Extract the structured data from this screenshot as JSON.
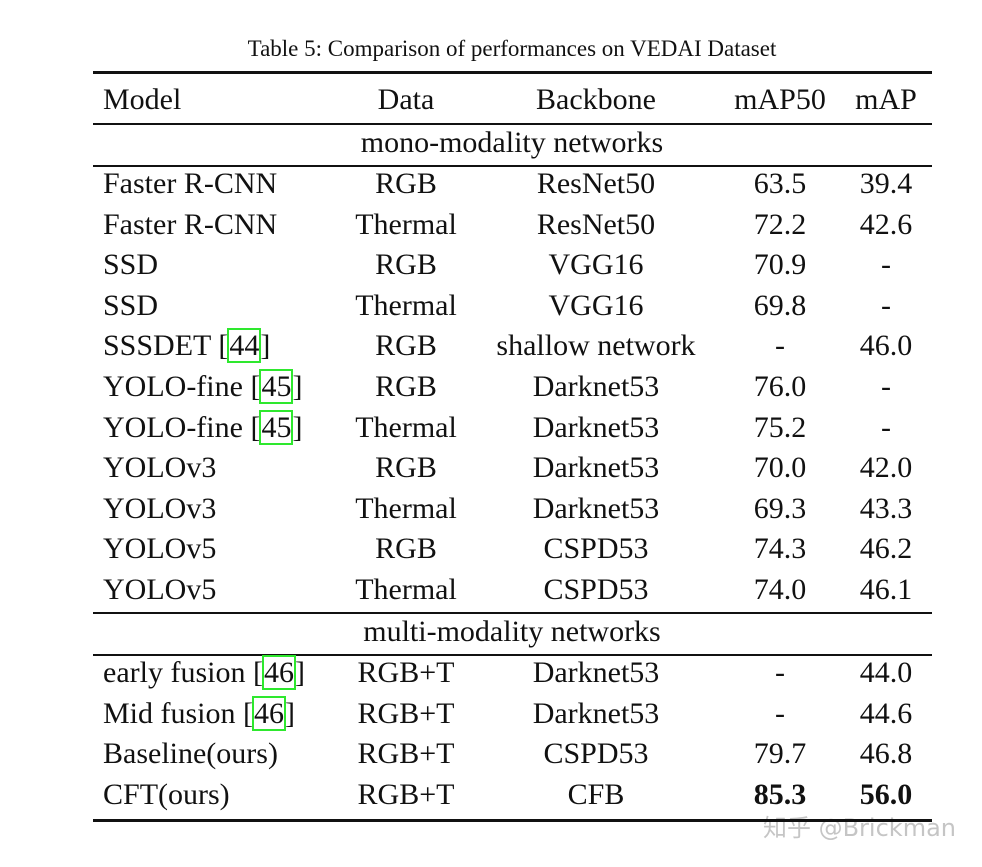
{
  "caption": "Table 5: Comparison of performances on VEDAI Dataset",
  "table": {
    "header": [
      "Model",
      "Data",
      "Backbone",
      "mAP50",
      "mAP"
    ],
    "sections": [
      {
        "title": "mono-modality networks",
        "rows": [
          [
            "Faster R-CNN",
            "RGB",
            "ResNet50",
            "63.5",
            "39.4"
          ],
          [
            "Faster R-CNN",
            "Thermal",
            "ResNet50",
            "72.2",
            "42.6"
          ],
          [
            "SSD",
            "RGB",
            "VGG16",
            "70.9",
            "-"
          ],
          [
            "SSD",
            "Thermal",
            "VGG16",
            "69.8",
            "-"
          ],
          [
            "SSSDET [44]",
            "RGB",
            "shallow network",
            "-",
            "46.0"
          ],
          [
            "YOLO-fine [45]",
            "RGB",
            "Darknet53",
            "76.0",
            "-"
          ],
          [
            "YOLO-fine [45]",
            "Thermal",
            "Darknet53",
            "75.2",
            "-"
          ],
          [
            "YOLOv3",
            "RGB",
            "Darknet53",
            "70.0",
            "42.0"
          ],
          [
            "YOLOv3",
            "Thermal",
            "Darknet53",
            "69.3",
            "43.3"
          ],
          [
            "YOLOv5",
            "RGB",
            "CSPD53",
            "74.3",
            "46.2"
          ],
          [
            "YOLOv5",
            "Thermal",
            "CSPD53",
            "74.0",
            "46.1"
          ]
        ]
      },
      {
        "title": "multi-modality networks",
        "rows": [
          [
            "early fusion [46]",
            "RGB+T",
            "Darknet53",
            "-",
            "44.0"
          ],
          [
            "Mid fusion [46]",
            "RGB+T",
            "Darknet53",
            "-",
            "44.6"
          ],
          [
            "Baseline(ours)",
            "RGB+T",
            "CSPD53",
            "79.7",
            "46.8"
          ],
          [
            "CFT(ours)",
            "RGB+T",
            "CFB",
            "85.3",
            "56.0"
          ]
        ],
        "bold_row": 3
      }
    ]
  },
  "watermark": "知乎 @Brickman"
}
